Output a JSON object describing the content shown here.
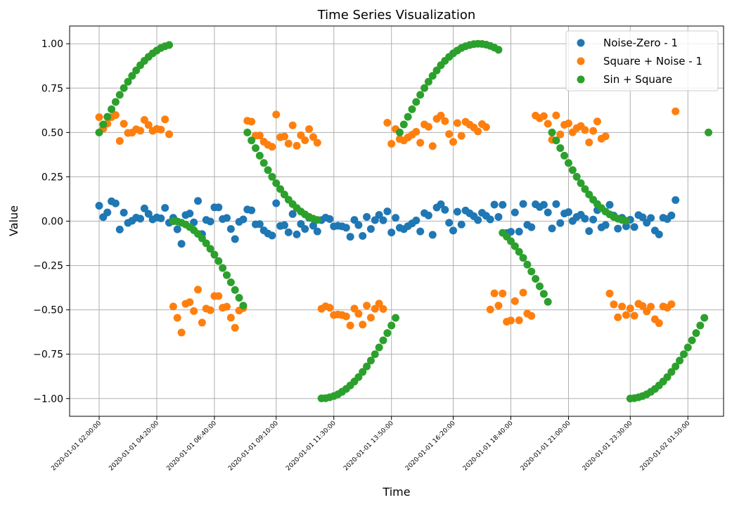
{
  "chart_data": {
    "type": "scatter",
    "title": "Time Series Visualization",
    "xlabel": "Time",
    "ylabel": "Value",
    "ylim": [
      -1.1,
      1.1
    ],
    "y_ticks": [
      "−1.00",
      "−0.75",
      "−0.50",
      "−0.25",
      "0.00",
      "0.25",
      "0.50",
      "0.75",
      "1.00"
    ],
    "x_ticks": [
      "2020-01-01 02:00:00",
      "2020-01-01 04:20:00",
      "2020-01-01 06:40:00",
      "2020-01-01 09:10:00",
      "2020-01-01 11:30:00",
      "2020-01-01 13:50:00",
      "2020-01-01 16:20:00",
      "2020-01-01 18:40:00",
      "2020-01-01 21:00:00",
      "2020-01-01 23:30:00",
      "2020-01-02 01:50:00"
    ],
    "x_start": "2020-01-01 02:00:00",
    "x_step_minutes": 10,
    "grid": true,
    "legend_position": "top-right",
    "series": [
      {
        "name": "Noise-Zero - 1",
        "color": "#1f77b4",
        "values": [
          0.087,
          0.023,
          0.049,
          0.112,
          0.1,
          -0.047,
          0.048,
          -0.01,
          0.002,
          0.02,
          0.014,
          0.072,
          0.041,
          0.01,
          0.021,
          0.016,
          0.075,
          -0.009,
          0.019,
          -0.046,
          -0.128,
          0.034,
          0.043,
          -0.007,
          0.114,
          -0.073,
          0.007,
          -0.002,
          0.078,
          0.078,
          0.012,
          0.018,
          -0.044,
          -0.101,
          -0.004,
          0.01,
          0.066,
          0.061,
          -0.018,
          -0.017,
          -0.052,
          -0.07,
          -0.081,
          0.101,
          -0.027,
          -0.023,
          -0.063,
          0.04,
          -0.075,
          -0.016,
          -0.044,
          0.019,
          -0.026,
          -0.058,
          0.006,
          0.02,
          0.012,
          -0.029,
          -0.026,
          -0.029,
          -0.037,
          -0.088,
          0.007,
          -0.022,
          -0.083,
          0.024,
          -0.044,
          0.006,
          0.035,
          0.005,
          0.055,
          -0.064,
          0.019,
          -0.037,
          -0.045,
          -0.028,
          -0.013,
          0.004,
          -0.058,
          0.045,
          0.032,
          -0.077,
          0.077,
          0.095,
          0.064,
          -0.009,
          -0.053,
          0.053,
          -0.019,
          0.06,
          0.044,
          0.028,
          0.006,
          0.047,
          0.03,
          0.01,
          0.093,
          0.024,
          0.092,
          -0.067,
          -0.06,
          0.049,
          -0.059,
          0.097,
          -0.021,
          -0.034,
          0.095,
          0.08,
          0.092,
          0.049,
          -0.041,
          0.096,
          -0.011,
          0.043,
          0.051,
          0.001,
          0.024,
          0.036,
          0.014,
          -0.056,
          0.009,
          0.062,
          -0.035,
          -0.022,
          0.092,
          0.031,
          -0.042,
          0.019,
          -0.029,
          0.008,
          -0.033,
          0.034,
          0.022,
          -0.009,
          0.018,
          -0.053,
          -0.075,
          0.019,
          0.012,
          0.032,
          0.119
        ]
      },
      {
        "name": "Square + Noise - 1",
        "color": "#ff7f0e",
        "values": [
          0.586,
          0.521,
          0.55,
          0.586,
          0.598,
          0.452,
          0.549,
          0.497,
          0.499,
          0.518,
          0.51,
          0.571,
          0.542,
          0.509,
          0.52,
          0.516,
          0.574,
          0.49,
          -0.481,
          -0.545,
          -0.628,
          -0.466,
          -0.457,
          -0.507,
          -0.386,
          -0.572,
          -0.493,
          -0.502,
          -0.422,
          -0.422,
          -0.488,
          -0.482,
          -0.544,
          -0.601,
          -0.504,
          -0.49,
          0.566,
          0.561,
          0.482,
          0.483,
          0.448,
          0.43,
          0.419,
          0.601,
          0.473,
          0.477,
          0.437,
          0.54,
          0.425,
          0.484,
          0.456,
          0.519,
          0.474,
          0.442,
          -0.494,
          -0.48,
          -0.488,
          -0.529,
          -0.526,
          -0.529,
          -0.537,
          -0.588,
          -0.493,
          -0.522,
          -0.583,
          -0.476,
          -0.544,
          -0.494,
          -0.465,
          -0.495,
          0.555,
          0.436,
          0.519,
          0.463,
          0.455,
          0.472,
          0.487,
          0.504,
          0.442,
          0.545,
          0.532,
          0.423,
          0.577,
          0.595,
          0.564,
          0.491,
          0.447,
          0.553,
          0.481,
          0.56,
          0.544,
          0.528,
          0.506,
          0.547,
          0.53,
          -0.498,
          -0.407,
          -0.476,
          -0.408,
          -0.567,
          -0.56,
          -0.451,
          -0.559,
          -0.403,
          -0.521,
          -0.534,
          0.595,
          0.58,
          0.592,
          0.549,
          0.459,
          0.596,
          0.489,
          0.543,
          0.551,
          0.501,
          0.524,
          0.536,
          0.514,
          0.444,
          0.509,
          0.562,
          0.465,
          0.478,
          -0.408,
          -0.469,
          -0.542,
          -0.481,
          -0.529,
          -0.492,
          -0.533,
          -0.466,
          -0.478,
          -0.509,
          -0.482,
          -0.553,
          -0.575,
          -0.481,
          -0.488,
          -0.468,
          0.619
        ]
      },
      {
        "name": "Sin + Square",
        "color": "#2ca02c",
        "values": [
          0.5,
          0.545,
          0.588,
          0.631,
          0.672,
          0.712,
          0.75,
          0.786,
          0.819,
          0.85,
          0.879,
          0.904,
          0.926,
          0.946,
          0.962,
          0.976,
          0.986,
          0.993,
          -0.0,
          -0.002,
          -0.009,
          -0.019,
          -0.033,
          -0.051,
          -0.072,
          -0.097,
          -0.125,
          -0.156,
          -0.189,
          -0.225,
          -0.264,
          -0.304,
          -0.345,
          -0.388,
          -0.432,
          -0.476,
          0.5,
          0.455,
          0.412,
          0.369,
          0.328,
          0.288,
          0.25,
          0.214,
          0.181,
          0.15,
          0.121,
          0.096,
          0.074,
          0.054,
          0.038,
          0.024,
          0.014,
          0.007,
          -0.999,
          -0.998,
          -0.993,
          -0.986,
          -0.976,
          -0.962,
          -0.946,
          -0.926,
          -0.904,
          -0.879,
          -0.85,
          -0.819,
          -0.786,
          -0.75,
          -0.712,
          -0.672,
          -0.631,
          -0.588,
          -0.545,
          0.5,
          0.545,
          0.588,
          0.631,
          0.672,
          0.712,
          0.75,
          0.786,
          0.819,
          0.85,
          0.879,
          0.904,
          0.926,
          0.946,
          0.962,
          0.976,
          0.986,
          0.993,
          0.998,
          1.0,
          0.999,
          0.995,
          0.988,
          0.978,
          0.966,
          -0.066,
          -0.087,
          -0.113,
          -0.141,
          -0.173,
          -0.207,
          -0.245,
          -0.284,
          -0.325,
          -0.367,
          -0.41,
          -0.455,
          0.5,
          0.455,
          0.412,
          0.369,
          0.328,
          0.288,
          0.25,
          0.214,
          0.181,
          0.15,
          0.121,
          0.096,
          0.074,
          0.054,
          0.038,
          0.024,
          0.014,
          0.007,
          0.002,
          -1.0,
          -0.998,
          -0.993,
          -0.986,
          -0.976,
          -0.962,
          -0.946,
          -0.926,
          -0.904,
          -0.879,
          -0.85,
          -0.819,
          -0.786,
          -0.75,
          -0.712,
          -0.672,
          -0.631,
          -0.588,
          -0.545,
          0.5
        ],
        "x_positions_note": "index-aligned with 10-minute steps"
      }
    ]
  }
}
